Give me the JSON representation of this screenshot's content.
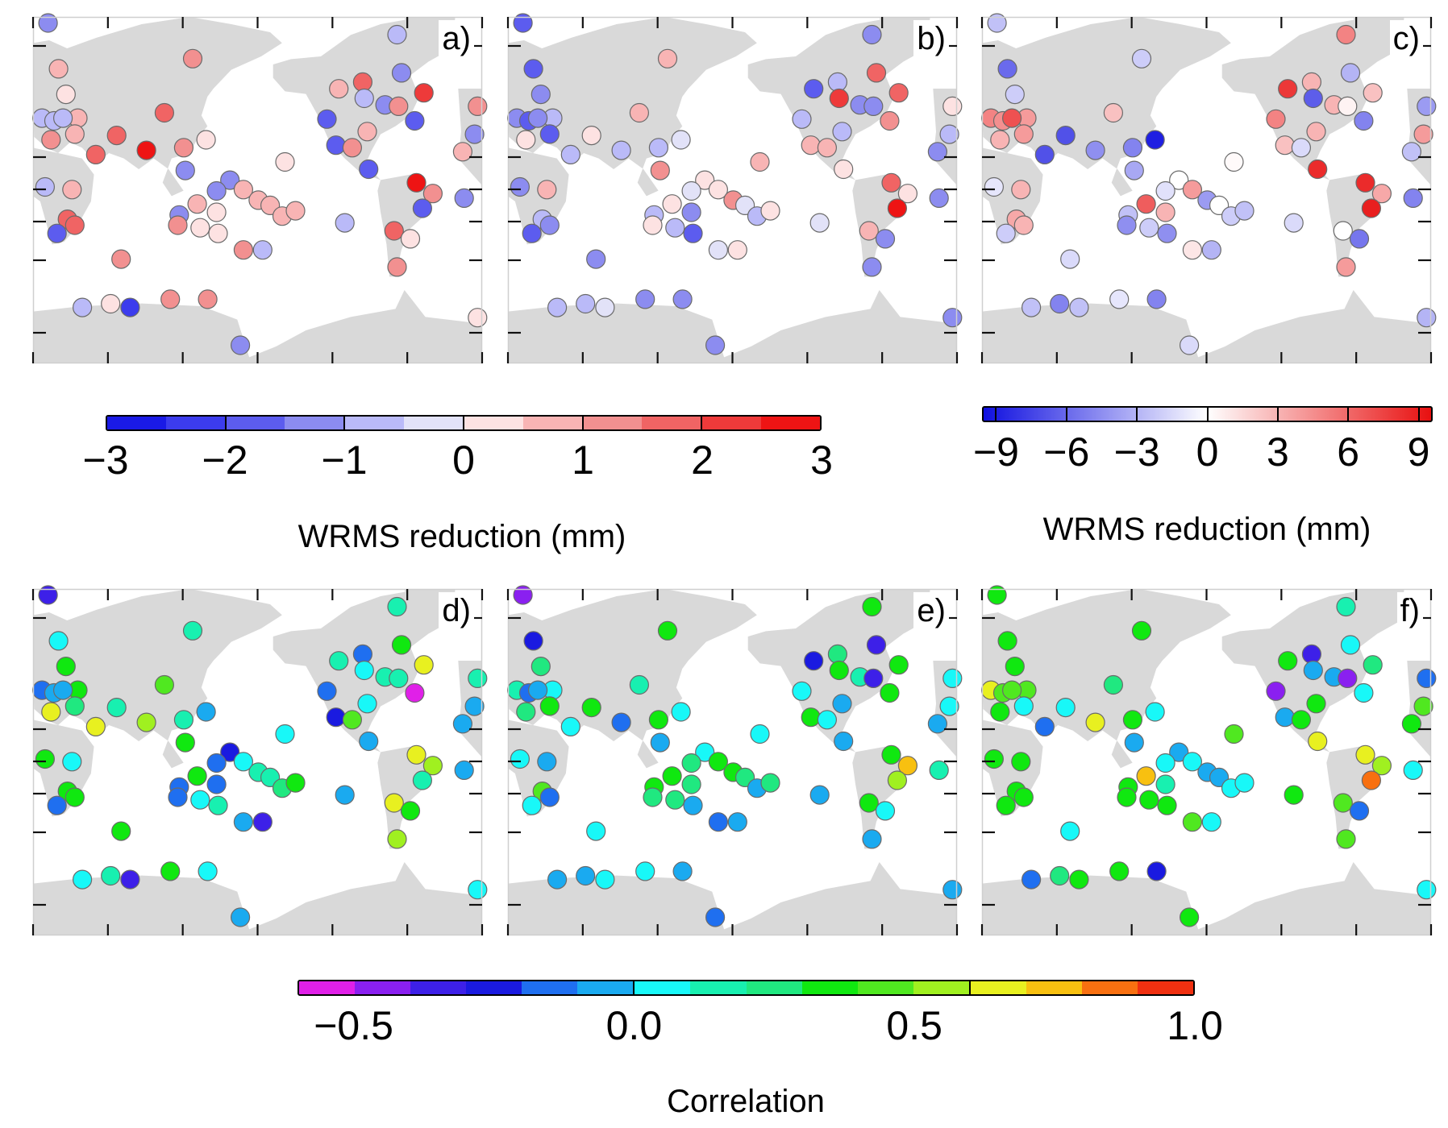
{
  "chart_data": {
    "type": "scatter",
    "description_of_marks": "station markers on world maps colored by value",
    "stations_lon_lat": [
      [
        12,
        77
      ],
      [
        20.4,
        66.7
      ],
      [
        128,
        69.5
      ],
      [
        291.8,
        74.9
      ],
      [
        295.4,
        65.5
      ],
      [
        245.1,
        60.1
      ],
      [
        264.3,
        62.5
      ],
      [
        265.5,
        56.4
      ],
      [
        282.2,
        53.6
      ],
      [
        293,
        53
      ],
      [
        313.3,
        58.6
      ],
      [
        306,
        46
      ],
      [
        235.6,
        46.9
      ],
      [
        267.9,
        40.2
      ],
      [
        242.8,
        32.1
      ],
      [
        255.9,
        30.5
      ],
      [
        269,
        15.9
      ],
      [
        307.3,
        6.1
      ],
      [
        320.5,
        -1.9
      ],
      [
        312.1,
        -12.7
      ],
      [
        249.9,
        -23
      ],
      [
        289.4,
        -28.3
      ],
      [
        302.5,
        -33.4
      ],
      [
        291.8,
        -49
      ],
      [
        356.3,
        53
      ],
      [
        353.9,
        38.7
      ],
      [
        344.4,
        27.9
      ],
      [
        345.6,
        -5.3
      ],
      [
        356.3,
        -68
      ],
      [
        7.2,
        47.4
      ],
      [
        16.8,
        46
      ],
      [
        26.4,
        58
      ],
      [
        35.9,
        47.4
      ],
      [
        33.5,
        38.8
      ],
      [
        14.4,
        35.4
      ],
      [
        24,
        47.4
      ],
      [
        105.3,
        50
      ],
      [
        67,
        38
      ],
      [
        50.3,
        26
      ],
      [
        90.9,
        28.8
      ],
      [
        120.8,
        30.5
      ],
      [
        138.7,
        35.4
      ],
      [
        122,
        15
      ],
      [
        202,
        21
      ],
      [
        9.6,
        3
      ],
      [
        31.2,
        1
      ],
      [
        27.6,
        -20.5
      ],
      [
        33.5,
        -24.6
      ],
      [
        19.2,
        -30
      ],
      [
        70.6,
        -45
      ],
      [
        39.5,
        -65
      ],
      [
        62.2,
        -63.8
      ],
      [
        77.8,
        -65
      ],
      [
        110,
        -62.3
      ],
      [
        140,
        -62.3
      ],
      [
        166.2,
        -74.5
      ],
      [
        157.8,
        8
      ],
      [
        147.1,
        0
      ],
      [
        168.6,
        1
      ],
      [
        131.6,
        -9.6
      ],
      [
        147.1,
        -15.6
      ],
      [
        117.2,
        -17.5
      ],
      [
        116,
        -24.6
      ],
      [
        134,
        -26.3
      ],
      [
        148.3,
        -30
      ],
      [
        180.6,
        -6.8
      ],
      [
        190.1,
        -10.6
      ],
      [
        199.7,
        -18.3
      ],
      [
        210.4,
        -14.5
      ],
      [
        168.6,
        -40
      ],
      [
        184.1,
        -40
      ]
    ],
    "panels": [
      {
        "label": "a)",
        "scale": "wrms3",
        "values": [
          -1.2,
          0.9,
          1.0,
          -0.6,
          -1.3,
          0.9,
          1.9,
          -0.7,
          -1.5,
          1.0,
          2.2,
          -1.8,
          -1.7,
          0.5,
          -2.0,
          1.0,
          -1.6,
          2.9,
          1.2,
          -2.0,
          -0.9,
          1.8,
          0.3,
          1.4,
          1.0,
          -1.2,
          0.9,
          -1.1,
          0.2,
          -1.0,
          -1.0,
          0.4,
          0.8,
          0.6,
          1.2,
          -1.0,
          1.9,
          1.9,
          1.9,
          2.6,
          1.0,
          0.2,
          -1.3,
          0.2,
          -1.0,
          0.6,
          1.8,
          1.6,
          -2.0,
          1.1,
          -0.8,
          0.2,
          -2.1,
          1.2,
          1.1,
          -1.1,
          -1.1,
          -1.4,
          0.9,
          0.6,
          0.1,
          -1.5,
          1.0,
          0.2,
          0.2,
          0.7,
          0.6,
          0.6,
          0.5,
          1.2,
          -0.9
        ]
      },
      {
        "label": "b)",
        "scale": "wrms3",
        "values": [
          -1.6,
          -2.0,
          0.8,
          -1.1,
          1.6,
          -1.6,
          -0.9,
          2.4,
          -1.2,
          -1.2,
          1.8,
          1.1,
          -0.8,
          -0.8,
          0.9,
          0.6,
          0.1,
          1.7,
          0.1,
          2.9,
          -0.2,
          0.6,
          -1.5,
          -1.4,
          0.3,
          -1.0,
          -1.3,
          -1.4,
          -1.2,
          -1.5,
          -1.6,
          -1.2,
          -0.9,
          -1.8,
          0.1,
          -1.2,
          0.6,
          0.1,
          -0.7,
          -0.7,
          -0.8,
          -0.1,
          1.2,
          0.7,
          -1.4,
          0.6,
          -0.9,
          -1.2,
          -1.6,
          -1.2,
          -0.6,
          -1.0,
          -0.5,
          -1.1,
          -1.2,
          -1.5,
          0.3,
          -0.2,
          0.2,
          0.1,
          -1.1,
          -0.6,
          0.3,
          -0.7,
          -1.9,
          1.1,
          -0.2,
          -0.6,
          0.1,
          -0.1,
          0.2
        ]
      },
      {
        "label": "c)",
        "scale": "wrms9",
        "values": [
          -2.5,
          -6,
          -2,
          5,
          -3,
          8,
          3,
          -6.5,
          3,
          0.5,
          2.5,
          -5,
          5,
          3,
          2.5,
          -1.5,
          8.5,
          8.5,
          3.5,
          9,
          -1.5,
          0,
          -5.5,
          4,
          -4,
          4,
          -2.5,
          -5,
          -3,
          5,
          4.5,
          -2,
          4,
          4,
          3,
          7,
          2.5,
          -7,
          -7,
          -4.5,
          -5,
          -9,
          -3.5,
          0.2,
          -1,
          3,
          3.5,
          3,
          -2,
          -1.5,
          -2.5,
          -5,
          -2.5,
          -1,
          -5,
          -1.5,
          0,
          -1.2,
          4,
          6.5,
          3,
          -2.5,
          -4.5,
          -2,
          -4.5,
          -4,
          0,
          -2,
          -2.5,
          1,
          -3
        ]
      },
      {
        "label": "d)",
        "scale": "corr",
        "values": [
          -0.35,
          0.05,
          0.15,
          0.15,
          0.35,
          0.15,
          -0.15,
          0.05,
          0.15,
          0.15,
          0.65,
          -0.55,
          -0.15,
          0.05,
          -0.3,
          0.45,
          -0.05,
          0.65,
          0.55,
          0.15,
          -0.05,
          0.65,
          0.35,
          0.55,
          0.15,
          -0.1,
          -0.05,
          -0.05,
          0.05,
          -0.15,
          -0.05,
          0.35,
          0.35,
          0.2,
          0.65,
          -0.05,
          0.45,
          0.15,
          0.65,
          0.55,
          0.15,
          -0.05,
          0.3,
          0.05,
          0.35,
          0.05,
          0.3,
          0.3,
          -0.15,
          0.35,
          0.05,
          0.15,
          -0.35,
          0.35,
          0.05,
          -0.05,
          -0.3,
          -0.15,
          0.05,
          0.3,
          -0.15,
          -0.2,
          -0.2,
          0.05,
          0.15,
          0.15,
          0.15,
          0.25,
          0.35,
          -0.05,
          -0.35
        ]
      },
      {
        "label": "e)",
        "scale": "corr",
        "values": [
          -0.45,
          -0.3,
          0.35,
          0.35,
          -0.4,
          -0.3,
          0.2,
          0.35,
          0.15,
          -0.4,
          0.3,
          0.3,
          0.05,
          -0.05,
          0.3,
          0.05,
          -0.05,
          0.3,
          0.75,
          0.55,
          -0.05,
          0.35,
          0.05,
          -0.05,
          0.05,
          0.05,
          -0.05,
          0.15,
          -0.05,
          0.1,
          -0.15,
          0.2,
          0.05,
          0.3,
          0.2,
          -0.1,
          0.15,
          0.3,
          0.05,
          -0.2,
          0.35,
          0.05,
          -0.05,
          0.05,
          0.05,
          -0.05,
          0.45,
          -0.2,
          0.05,
          0.05,
          -0.05,
          -0.05,
          0.05,
          0.05,
          -0.05,
          -0.2,
          0.05,
          0.2,
          0.3,
          0.3,
          0.2,
          0.35,
          0.2,
          0.2,
          -0.05,
          0.3,
          0.2,
          -0.05,
          0.2,
          -0.2,
          -0.05
        ]
      },
      {
        "label": "f)",
        "scale": "corr",
        "values": [
          0.35,
          0.35,
          0.35,
          0.15,
          0.05,
          0.35,
          -0.35,
          -0.05,
          -0.05,
          -0.45,
          0.2,
          0.05,
          -0.45,
          0.35,
          -0.05,
          0.35,
          0.65,
          0.65,
          0.55,
          0.85,
          0.35,
          0.45,
          -0.15,
          0.4,
          -0.15,
          0.4,
          0.35,
          0.05,
          0.05,
          0.65,
          0.45,
          0.35,
          0.4,
          0.05,
          0.35,
          0.45,
          0.2,
          0.05,
          -0.2,
          0.65,
          0.3,
          0.05,
          -0.05,
          0.45,
          0.35,
          0.35,
          0.35,
          0.35,
          0.35,
          0.05,
          -0.15,
          0.2,
          0.35,
          0.3,
          -0.3,
          0.35,
          -0.05,
          0.05,
          0.05,
          0.75,
          0.15,
          0.35,
          0.35,
          0.35,
          0.35,
          -0.05,
          -0.05,
          0.05,
          0.05,
          0.45,
          0.05
        ]
      }
    ],
    "colorbars": {
      "wrms3": {
        "range": [
          -3,
          3
        ],
        "ticks": [
          "−3",
          "−2",
          "−1",
          "0",
          "1",
          "2",
          "3"
        ],
        "tick_values": [
          -3,
          -2,
          -1,
          0,
          1,
          2,
          3
        ],
        "title": "WRMS reduction (mm)",
        "colors": [
          "#1a1ae6",
          "#3c3ced",
          "#5c5cef",
          "#8c8cf0",
          "#babaf8",
          "#e2e2f8",
          "#fde2e2",
          "#f8b4b4",
          "#f29090",
          "#f06464",
          "#ee3a3a",
          "#ee1414"
        ]
      },
      "wrms9": {
        "range": [
          -9.6,
          9.6
        ],
        "ticks": [
          "−9",
          "−6",
          "−3",
          "0",
          "3",
          "6",
          "9"
        ],
        "tick_values": [
          -9,
          -6,
          -3,
          0,
          3,
          6,
          9
        ],
        "title": "WRMS reduction (mm)",
        "colors": [
          "#1010e0",
          "#ffffff",
          "#e81010"
        ]
      },
      "corr": {
        "range": [
          -0.6,
          1.0
        ],
        "ticks": [
          "−0.5",
          "0.0",
          "0.5",
          "1.0"
        ],
        "tick_values": [
          -0.5,
          0,
          0.5,
          1.0
        ],
        "title": "Correlation",
        "colors": [
          "#e020e8",
          "#8a20f0",
          "#3d20e8",
          "#1a1ae0",
          "#1f6ff0",
          "#1aaaf0",
          "#18f8f8",
          "#18f0b0",
          "#20e880",
          "#10e810",
          "#50e820",
          "#a0f020",
          "#e8f020",
          "#f8c010",
          "#f87010",
          "#f03010"
        ]
      }
    },
    "land_color": "#d9d9d9"
  }
}
